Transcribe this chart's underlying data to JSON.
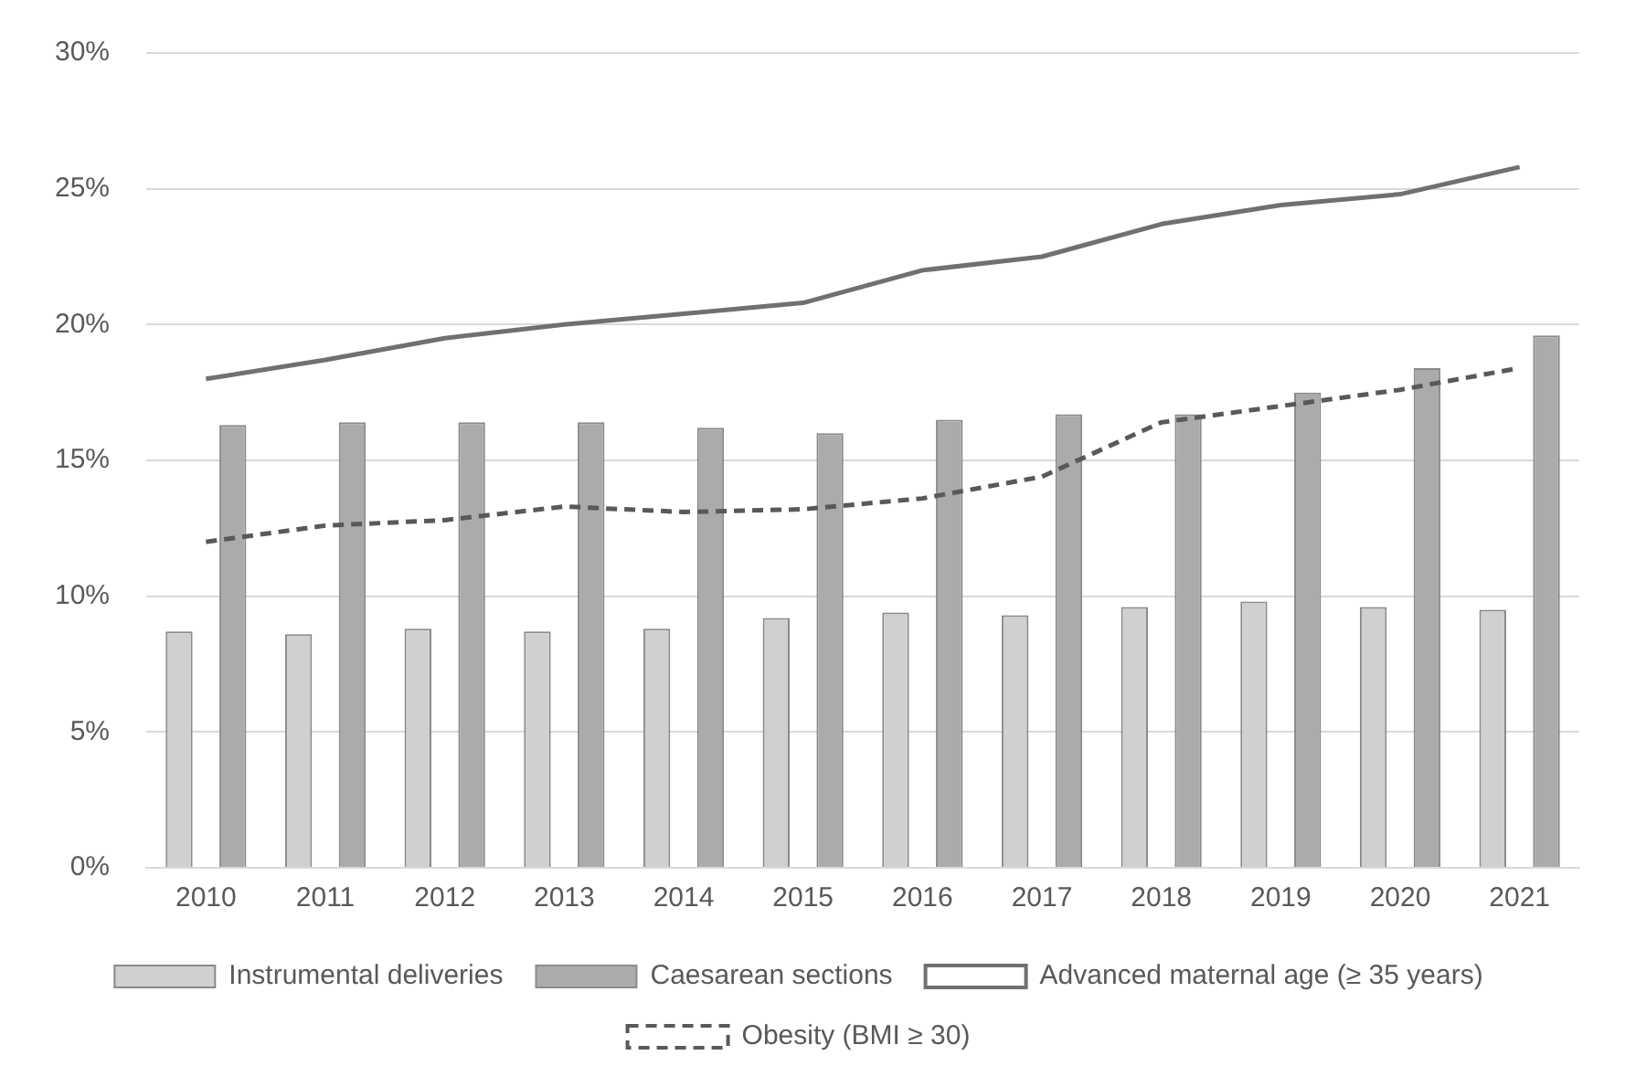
{
  "chart_data": {
    "type": "bar",
    "categories": [
      "2010",
      "2011",
      "2012",
      "2013",
      "2014",
      "2015",
      "2016",
      "2017",
      "2018",
      "2019",
      "2020",
      "2021"
    ],
    "series": [
      {
        "name": "Instrumental deliveries",
        "color": "#d0d0d0",
        "values": [
          8.7,
          8.6,
          8.8,
          8.7,
          8.8,
          9.2,
          9.4,
          9.3,
          9.6,
          9.8,
          9.6,
          9.5
        ]
      },
      {
        "name": "Caesarean sections",
        "color": "#ababab",
        "values": [
          16.3,
          16.4,
          16.4,
          16.4,
          16.2,
          16.0,
          16.5,
          16.7,
          16.7,
          17.5,
          18.4,
          19.6
        ]
      },
      {
        "name": "Advanced maternal age (≥ 35 years)",
        "type": "line",
        "color": "#707070",
        "line_style": "solid",
        "values": [
          18.0,
          18.7,
          19.5,
          20.0,
          20.4,
          20.8,
          22.0,
          22.5,
          23.7,
          24.4,
          24.8,
          25.8
        ]
      },
      {
        "name": "Obesity (BMI ≥ 30)",
        "type": "line",
        "color": "#595959",
        "line_style": "dashed",
        "values": [
          12.0,
          12.6,
          12.8,
          13.3,
          13.1,
          13.2,
          13.6,
          14.4,
          16.4,
          17.0,
          17.6,
          18.4
        ]
      }
    ],
    "ylim": [
      0,
      30
    ],
    "yticks": [
      {
        "value": 0,
        "label": "0%"
      },
      {
        "value": 5,
        "label": "5%"
      },
      {
        "value": 10,
        "label": "10%"
      },
      {
        "value": 15,
        "label": "15%"
      },
      {
        "value": 20,
        "label": "20%"
      },
      {
        "value": 25,
        "label": "25%"
      },
      {
        "value": 30,
        "label": "30%"
      }
    ],
    "grid": "y",
    "legend": "bottom",
    "marker": "none"
  }
}
